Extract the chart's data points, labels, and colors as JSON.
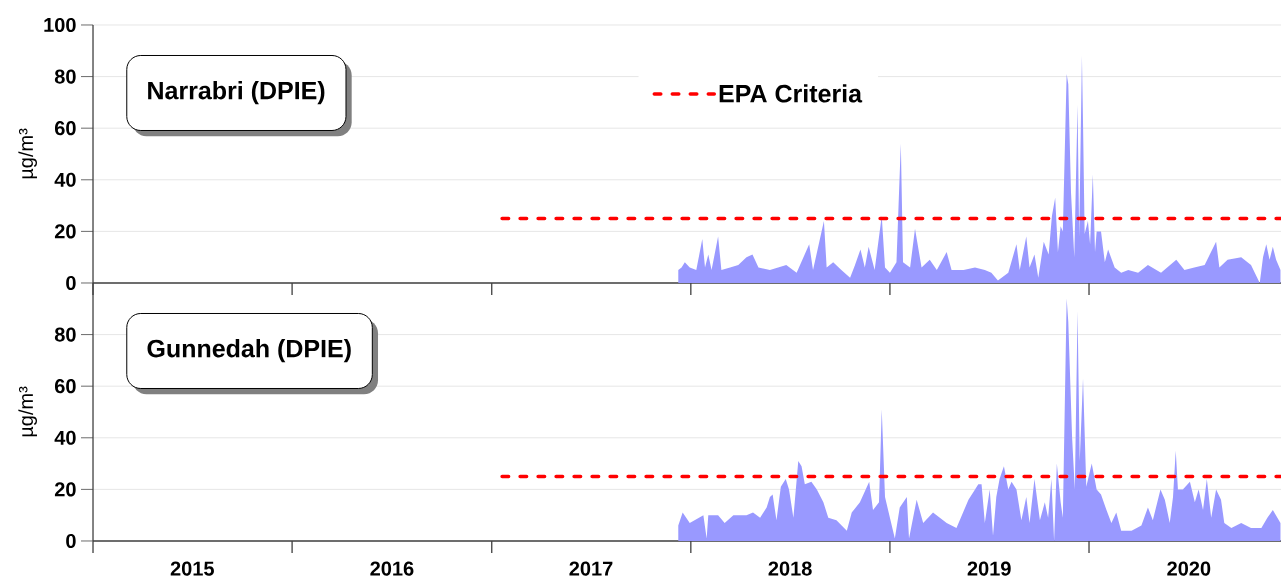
{
  "chart_data": [
    {
      "type": "area",
      "title": "Narrabri (DPIE)",
      "ylabel": "µg/m³",
      "xlim": [
        "2015-01-01",
        "2020-12-18"
      ],
      "xticks": [
        {
          "value": "2015-01-01",
          "label": null
        },
        {
          "value": "2016-01-01",
          "label": null
        },
        {
          "value": "2017-01-01",
          "label": null
        },
        {
          "value": "2018-01-01",
          "label": null
        },
        {
          "value": "2019-01-01",
          "label": null
        },
        {
          "value": "2020-01-01",
          "label": null
        }
      ],
      "ylim": [
        0,
        100
      ],
      "yticks": [
        0,
        20,
        40,
        60,
        80,
        100
      ],
      "grid": "y",
      "legend": "top",
      "tick_labels": "y",
      "series": [
        {
          "color": "#9999ff",
          "x": [
            "2017-12-09",
            "2017-12-15",
            "2017-12-21",
            "2017-12-30",
            "2018-01-11",
            "2018-01-22",
            "2018-01-27",
            "2018-02-02",
            "2018-02-08",
            "2018-02-20",
            "2018-02-26",
            "2018-03-14",
            "2018-03-29",
            "2018-04-13",
            "2018-04-24",
            "2018-05-05",
            "2018-05-26",
            "2018-06-25",
            "2018-07-14",
            "2018-08-06",
            "2018-08-13",
            "2018-09-02",
            "2018-09-07",
            "2018-09-19",
            "2018-10-04",
            "2018-10-20",
            "2018-10-29",
            "2018-11-08",
            "2018-11-16",
            "2018-11-23",
            "2018-12-04",
            "2018-12-17",
            "2018-12-23",
            "2019-01-01",
            "2019-01-13",
            "2019-01-21",
            "2019-01-25",
            "2019-02-07",
            "2019-02-16",
            "2019-02-20",
            "2019-02-28",
            "2019-03-15",
            "2019-03-28",
            "2019-04-15",
            "2019-04-24",
            "2019-05-16",
            "2019-06-06",
            "2019-06-24",
            "2019-07-06",
            "2019-07-18",
            "2019-08-06",
            "2019-08-21",
            "2019-08-27",
            "2019-09-08",
            "2019-09-14",
            "2019-09-23",
            "2019-09-30",
            "2019-10-10",
            "2019-10-19",
            "2019-10-25",
            "2019-10-31",
            "2019-11-05",
            "2019-11-10",
            "2019-11-14",
            "2019-11-21",
            "2019-11-24",
            "2019-11-29",
            "2019-12-05",
            "2019-12-11",
            "2019-12-14",
            "2019-12-19",
            "2019-12-21",
            "2019-12-24",
            "2019-12-30",
            "2020-01-03",
            "2020-01-08",
            "2020-01-12",
            "2020-01-15",
            "2020-01-23",
            "2020-01-30",
            "2020-02-05",
            "2020-02-17",
            "2020-02-29",
            "2020-03-13",
            "2020-03-31",
            "2020-04-18",
            "2020-05-12",
            "2020-06-09",
            "2020-06-24",
            "2020-07-12",
            "2020-07-31",
            "2020-08-21",
            "2020-08-27",
            "2020-09-11",
            "2020-10-06",
            "2020-10-24",
            "2020-11-09",
            "2020-11-15",
            "2020-11-21",
            "2020-11-27",
            "2020-12-03",
            "2020-12-09",
            "2020-12-17"
          ],
          "values": [
            5,
            6,
            8,
            6,
            5,
            17,
            6,
            11,
            5,
            18,
            5,
            6,
            7,
            10,
            11,
            6,
            5,
            7,
            4,
            15,
            5,
            24,
            6,
            8,
            5,
            2,
            7,
            13,
            6,
            14,
            5,
            26,
            6,
            4,
            8,
            54,
            8,
            6,
            21,
            16,
            6,
            9,
            5,
            12,
            5,
            5,
            6,
            5,
            4,
            1,
            4,
            15,
            5,
            18,
            6,
            11,
            2,
            16,
            11,
            26,
            33,
            12,
            22,
            20,
            81,
            77,
            35,
            10,
            69,
            18,
            88,
            62,
            19,
            24,
            15,
            42,
            12,
            20,
            20,
            8,
            13,
            6,
            4,
            5,
            4,
            7,
            4,
            9,
            5,
            6,
            7,
            16,
            6,
            9,
            10,
            7,
            0,
            10,
            15,
            9,
            14,
            9,
            5
          ]
        },
        {
          "type": "line",
          "name": "EPA Criteria",
          "color": "#ff0000",
          "line_style": "dashed",
          "x": [
            "2017-01-20",
            "2020-12-18"
          ],
          "values": [
            25,
            25
          ]
        }
      ]
    },
    {
      "type": "area",
      "title": "Gunnedah (DPIE)",
      "ylabel": "µg/m³",
      "xlim": [
        "2015-01-01",
        "2020-12-18"
      ],
      "xticks": [
        {
          "value": "2015-01-01",
          "label": null
        },
        {
          "value": "2015-07-02",
          "label": "2015"
        },
        {
          "value": "2016-01-01",
          "label": null
        },
        {
          "value": "2016-07-02",
          "label": "2016"
        },
        {
          "value": "2017-01-01",
          "label": null
        },
        {
          "value": "2017-07-02",
          "label": "2017"
        },
        {
          "value": "2018-01-01",
          "label": null
        },
        {
          "value": "2018-07-02",
          "label": "2018"
        },
        {
          "value": "2019-01-01",
          "label": null
        },
        {
          "value": "2019-07-02",
          "label": "2019"
        },
        {
          "value": "2020-01-01",
          "label": null
        },
        {
          "value": "2020-07-02",
          "label": "2020"
        }
      ],
      "ylim": [
        0,
        100
      ],
      "yticks": [
        0,
        20,
        40,
        60,
        80
      ],
      "grid": "y",
      "series": [
        {
          "color": "#9999ff",
          "x": [
            "2017-12-09",
            "2017-12-17",
            "2017-12-30",
            "2018-01-24",
            "2018-01-30",
            "2018-02-02",
            "2018-02-20",
            "2018-03-04",
            "2018-03-20",
            "2018-04-13",
            "2018-04-25",
            "2018-05-08",
            "2018-05-20",
            "2018-05-26",
            "2018-05-31",
            "2018-06-07",
            "2018-06-15",
            "2018-06-24",
            "2018-06-30",
            "2018-07-08",
            "2018-07-17",
            "2018-07-23",
            "2018-07-29",
            "2018-08-10",
            "2018-08-20",
            "2018-09-01",
            "2018-09-10",
            "2018-09-25",
            "2018-10-14",
            "2018-10-23",
            "2018-11-07",
            "2018-11-24",
            "2018-12-01",
            "2018-12-12",
            "2018-12-17",
            "2018-12-23",
            "2019-01-01",
            "2019-01-10",
            "2019-01-19",
            "2019-02-01",
            "2019-02-05",
            "2019-02-19",
            "2019-03-03",
            "2019-03-21",
            "2019-04-15",
            "2019-05-03",
            "2019-05-25",
            "2019-06-06",
            "2019-06-12",
            "2019-06-18",
            "2019-06-24",
            "2019-07-03",
            "2019-07-09",
            "2019-07-15",
            "2019-07-21",
            "2019-07-29",
            "2019-08-06",
            "2019-08-12",
            "2019-08-21",
            "2019-08-30",
            "2019-09-08",
            "2019-09-14",
            "2019-09-23",
            "2019-10-03",
            "2019-10-12",
            "2019-10-18",
            "2019-10-24",
            "2019-10-29",
            "2019-11-03",
            "2019-11-10",
            "2019-11-14",
            "2019-11-21",
            "2019-11-24",
            "2019-12-01",
            "2019-12-06",
            "2019-12-11",
            "2019-12-15",
            "2019-12-21",
            "2019-12-27",
            "2020-01-06",
            "2020-01-15",
            "2020-01-23",
            "2020-02-02",
            "2020-02-11",
            "2020-02-20",
            "2020-02-29",
            "2020-03-19",
            "2020-04-06",
            "2020-04-18",
            "2020-04-27",
            "2020-05-11",
            "2020-05-19",
            "2020-05-28",
            "2020-06-03",
            "2020-06-08",
            "2020-06-12",
            "2020-06-21",
            "2020-07-04",
            "2020-07-13",
            "2020-07-20",
            "2020-07-28",
            "2020-08-04",
            "2020-08-12",
            "2020-08-21",
            "2020-08-30",
            "2020-09-05",
            "2020-09-18",
            "2020-10-06",
            "2020-10-24",
            "2020-11-12",
            "2020-11-23",
            "2020-12-03",
            "2020-12-17"
          ],
          "values": [
            6,
            11,
            7,
            10,
            1,
            10,
            10,
            7,
            10,
            10,
            11,
            9,
            13,
            17,
            18,
            8,
            21,
            24,
            20,
            9,
            31,
            29,
            22,
            23,
            20,
            15,
            9,
            8,
            4,
            11,
            15,
            23,
            12,
            15,
            51,
            17,
            9,
            1,
            13,
            17,
            1,
            16,
            7,
            11,
            7,
            5,
            16,
            20,
            22,
            22,
            7,
            20,
            2,
            17,
            24,
            29,
            20,
            23,
            20,
            8,
            17,
            7,
            24,
            8,
            15,
            9,
            24,
            0,
            30,
            15,
            9,
            94,
            85,
            40,
            20,
            89,
            31,
            63,
            21,
            30,
            20,
            18,
            12,
            7,
            11,
            4,
            4,
            6,
            13,
            8,
            20,
            16,
            7,
            17,
            35,
            20,
            20,
            23,
            15,
            20,
            12,
            24,
            9,
            20,
            16,
            7,
            5,
            7,
            5,
            5,
            9,
            12,
            7
          ]
        },
        {
          "type": "line",
          "color": "#ff0000",
          "line_style": "dashed",
          "x": [
            "2017-01-20",
            "2020-12-18"
          ],
          "values": [
            25,
            25
          ]
        }
      ]
    }
  ]
}
